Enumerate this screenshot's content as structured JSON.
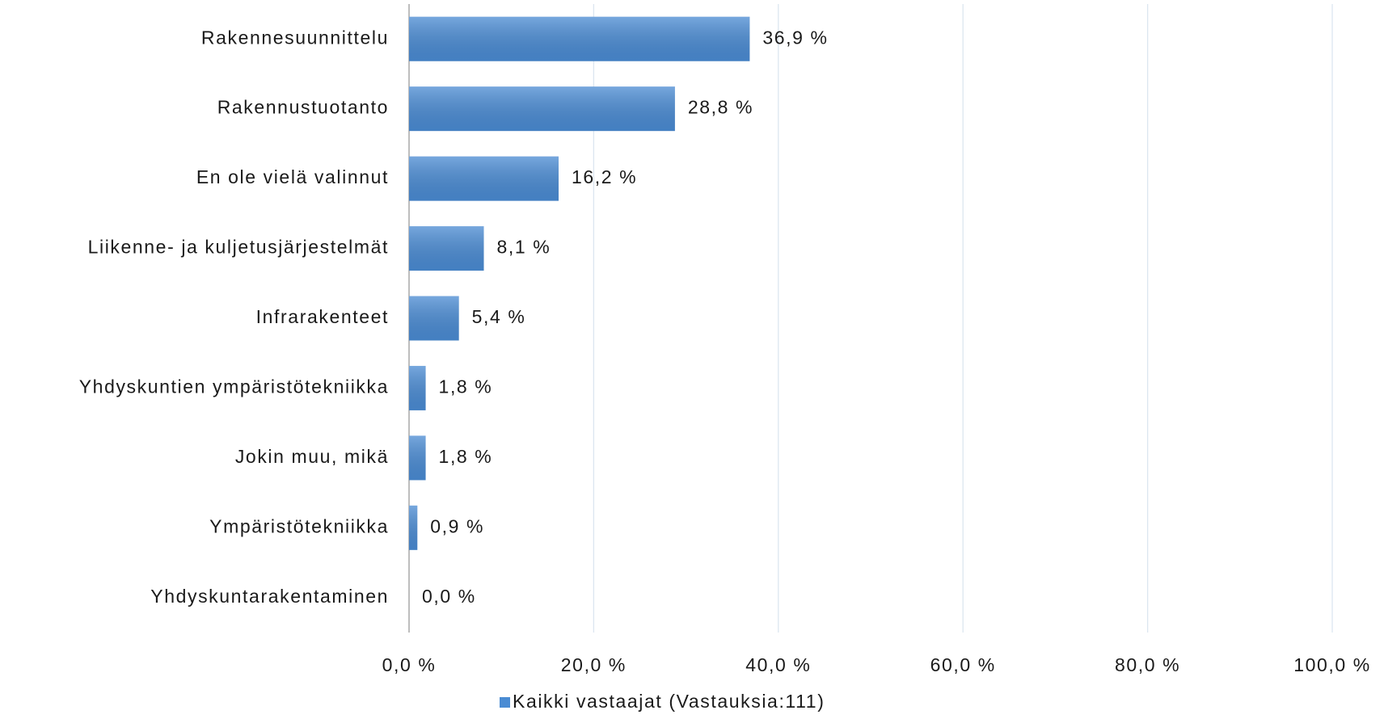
{
  "chart_data": {
    "type": "hbar",
    "categories": [
      "Rakennesuunnittelu",
      "Rakennustuotanto",
      "En ole vielä valinnut",
      "Liikenne- ja kuljetusjärjestelmät",
      "Infrarakenteet",
      "Yhdyskuntien ympäristötekniikka",
      "Jokin muu, mikä",
      "Ympäristötekniikka",
      "Yhdyskuntarakentaminen"
    ],
    "series": [
      {
        "name": "Kaikki vastaajat (Vastauksia:111)",
        "color": "#4a8bd3",
        "values": [
          36.9,
          28.8,
          16.2,
          8.1,
          5.4,
          1.8,
          1.8,
          0.9,
          0.0
        ],
        "value_labels": [
          "36,9 %",
          "28,8 %",
          "16,2 %",
          "8,1 %",
          "5,4 %",
          "1,8 %",
          "1,8 %",
          "0,9 %",
          "0,0 %"
        ]
      }
    ],
    "xlim": [
      0,
      100
    ],
    "xticks": [
      {
        "value": 0,
        "label": "0,0 %"
      },
      {
        "value": 20,
        "label": "20,0 %"
      },
      {
        "value": 40,
        "label": "40,0 %"
      },
      {
        "value": 60,
        "label": "60,0 %"
      },
      {
        "value": 80,
        "label": "80,0 %"
      },
      {
        "value": 100,
        "label": "100,0 %"
      }
    ],
    "grid": true,
    "legend": "bottom"
  }
}
